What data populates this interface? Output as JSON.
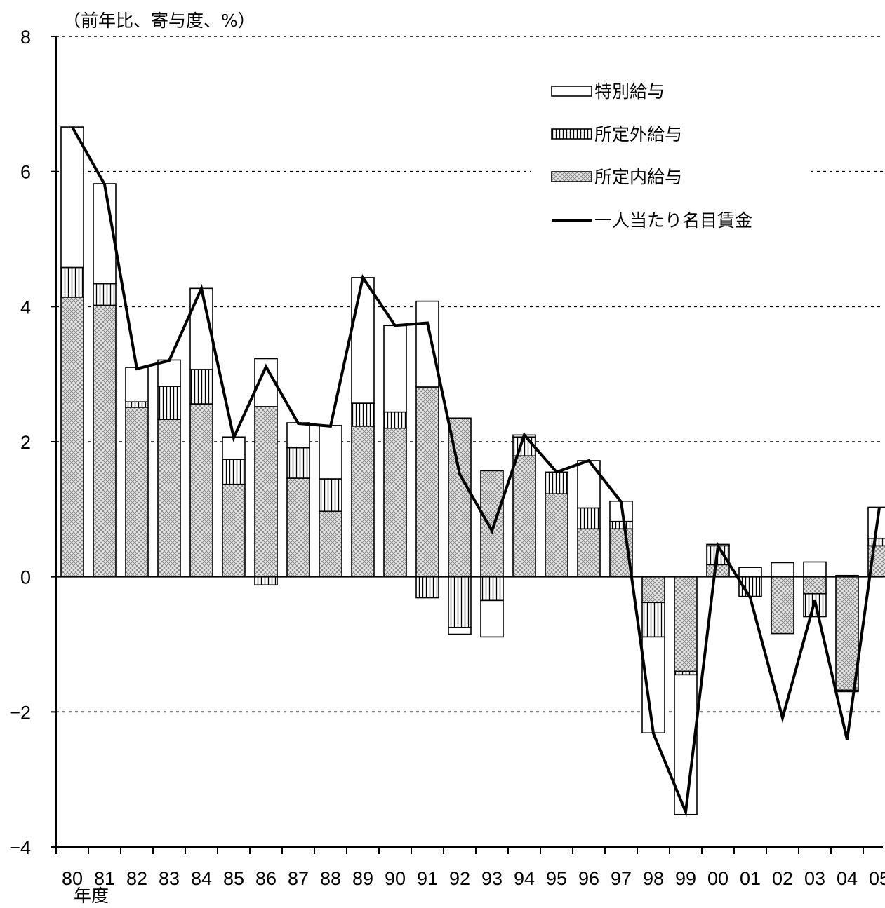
{
  "chart_data": {
    "type": "bar",
    "stacked": true,
    "unit_label": "（前年比、寄与度、%）",
    "xlabel": "年度",
    "ylim": [
      -4,
      8
    ],
    "yticks": [
      -4,
      -2,
      0,
      2,
      4,
      6,
      8
    ],
    "ytick_labels": [
      "−4",
      "−2",
      "0",
      "2",
      "4",
      "6",
      "8"
    ],
    "grid": "dotted horizontal at 2, 4, 6, 8",
    "legend_position": "top-right inside plot",
    "categories": [
      "80",
      "81",
      "82",
      "83",
      "84",
      "85",
      "86",
      "87",
      "88",
      "89",
      "90",
      "91",
      "92",
      "93",
      "94",
      "95",
      "96",
      "97",
      "98",
      "99",
      "00",
      "01",
      "02",
      "03",
      "04",
      "05"
    ],
    "series": [
      {
        "name": "所定内給与",
        "style": "crosshatch",
        "values": [
          4.14,
          4.02,
          2.51,
          2.33,
          2.56,
          1.37,
          2.52,
          1.46,
          0.97,
          2.23,
          2.2,
          2.81,
          2.35,
          1.57,
          1.79,
          1.23,
          0.71,
          0.71,
          -0.38,
          -1.4,
          0.18,
          0.0,
          -0.84,
          -0.25,
          -1.68,
          0.46
        ]
      },
      {
        "name": "所定外給与",
        "style": "vertical-stripes",
        "values": [
          0.44,
          0.32,
          0.08,
          0.49,
          0.51,
          0.37,
          -0.12,
          0.45,
          0.48,
          0.34,
          0.24,
          -0.31,
          -0.75,
          -0.35,
          0.28,
          0.32,
          0.31,
          0.11,
          -0.51,
          -0.05,
          0.28,
          -0.29,
          0.0,
          -0.34,
          -0.02,
          0.11
        ]
      },
      {
        "name": "特別給与",
        "style": "white",
        "values": [
          2.08,
          1.48,
          0.51,
          0.39,
          1.2,
          0.33,
          0.71,
          0.37,
          0.79,
          1.86,
          1.28,
          1.27,
          -0.1,
          -0.54,
          0.03,
          0.0,
          0.7,
          0.3,
          -1.42,
          -2.07,
          0.02,
          0.14,
          0.21,
          0.22,
          0.02,
          0.46
        ]
      },
      {
        "name": "一人当たり名目賃金",
        "type": "line",
        "values": [
          6.66,
          5.81,
          3.08,
          3.2,
          4.27,
          2.06,
          3.11,
          2.27,
          2.23,
          4.43,
          3.72,
          3.76,
          1.52,
          0.68,
          2.1,
          1.55,
          1.72,
          1.11,
          -2.32,
          -3.48,
          0.46,
          -0.31,
          -2.09,
          -0.35,
          -2.41,
          1.03
        ]
      }
    ],
    "legend": [
      "特別給与",
      "所定外給与",
      "所定内給与",
      "一人当たり名目賃金"
    ]
  }
}
